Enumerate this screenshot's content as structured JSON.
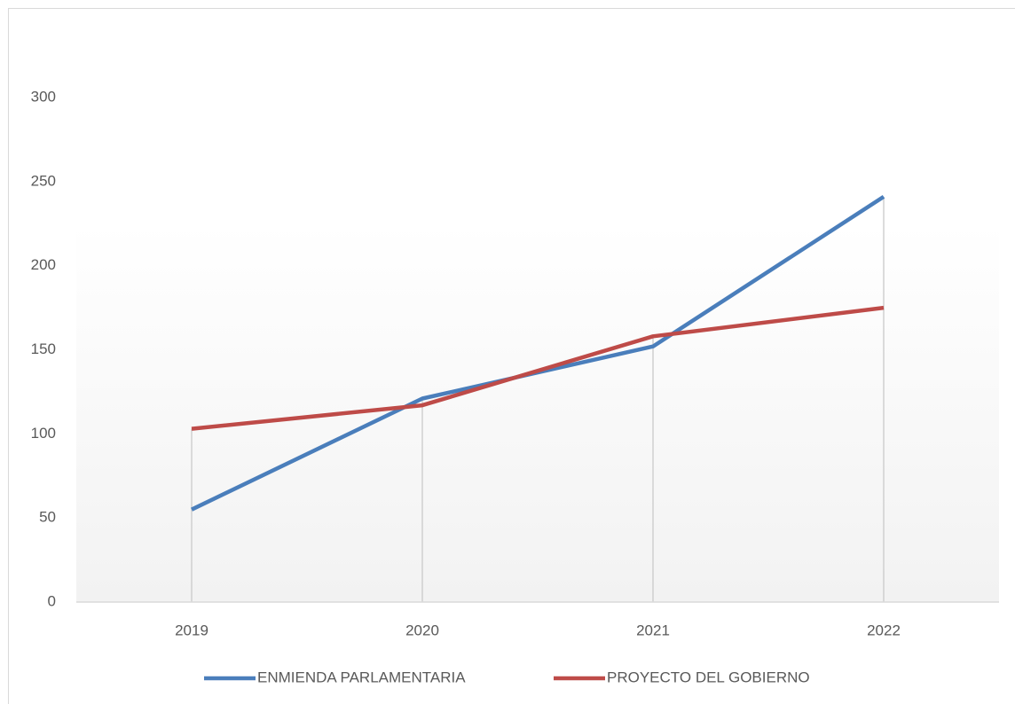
{
  "chart_data": {
    "type": "line",
    "categories": [
      "2019",
      "2020",
      "2021",
      "2022"
    ],
    "series": [
      {
        "name": "ENMIENDA PARLAMENTARIA",
        "color": "#4a7ebb",
        "values": [
          55,
          121,
          152,
          241
        ]
      },
      {
        "name": "PROYECTO DEL GOBIERNO",
        "color": "#be4b48",
        "values": [
          103,
          117,
          158,
          175
        ]
      }
    ],
    "ylim": [
      0,
      300
    ],
    "yticks": [
      0,
      50,
      100,
      150,
      200,
      250,
      300
    ],
    "grid": false,
    "legend": "bottom"
  }
}
